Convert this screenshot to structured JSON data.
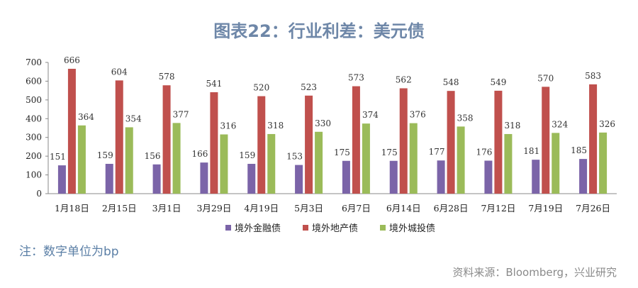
{
  "page": {
    "title": "图表22：行业利差：美元债",
    "note": "注：数字单位为bp",
    "source": "资料来源：Bloomberg，兴业研究"
  },
  "chart_data": {
    "type": "bar",
    "title": "图表22：行业利差：美元债",
    "categories": [
      "1月18日",
      "2月15日",
      "3月1日",
      "3月29日",
      "4月19日",
      "5月3日",
      "6月7日",
      "6月14日",
      "6月28日",
      "7月12日",
      "7月19日",
      "7月26日"
    ],
    "series": [
      {
        "name": "境外金融债",
        "color": "#7b64a8",
        "values": [
          151,
          159,
          156,
          166,
          159,
          153,
          175,
          175,
          177,
          176,
          181,
          185
        ]
      },
      {
        "name": "境外地产债",
        "color": "#c0504d",
        "values": [
          666,
          604,
          578,
          541,
          520,
          523,
          573,
          562,
          548,
          549,
          570,
          583
        ]
      },
      {
        "name": "境外城投债",
        "color": "#9bbb59",
        "values": [
          364,
          354,
          377,
          316,
          318,
          330,
          374,
          376,
          358,
          318,
          324,
          326
        ]
      }
    ],
    "ylim": [
      0,
      700
    ],
    "yticks": [
      0,
      100,
      200,
      300,
      400,
      500,
      600,
      700
    ],
    "legend_position": "bottom",
    "grid": false
  }
}
